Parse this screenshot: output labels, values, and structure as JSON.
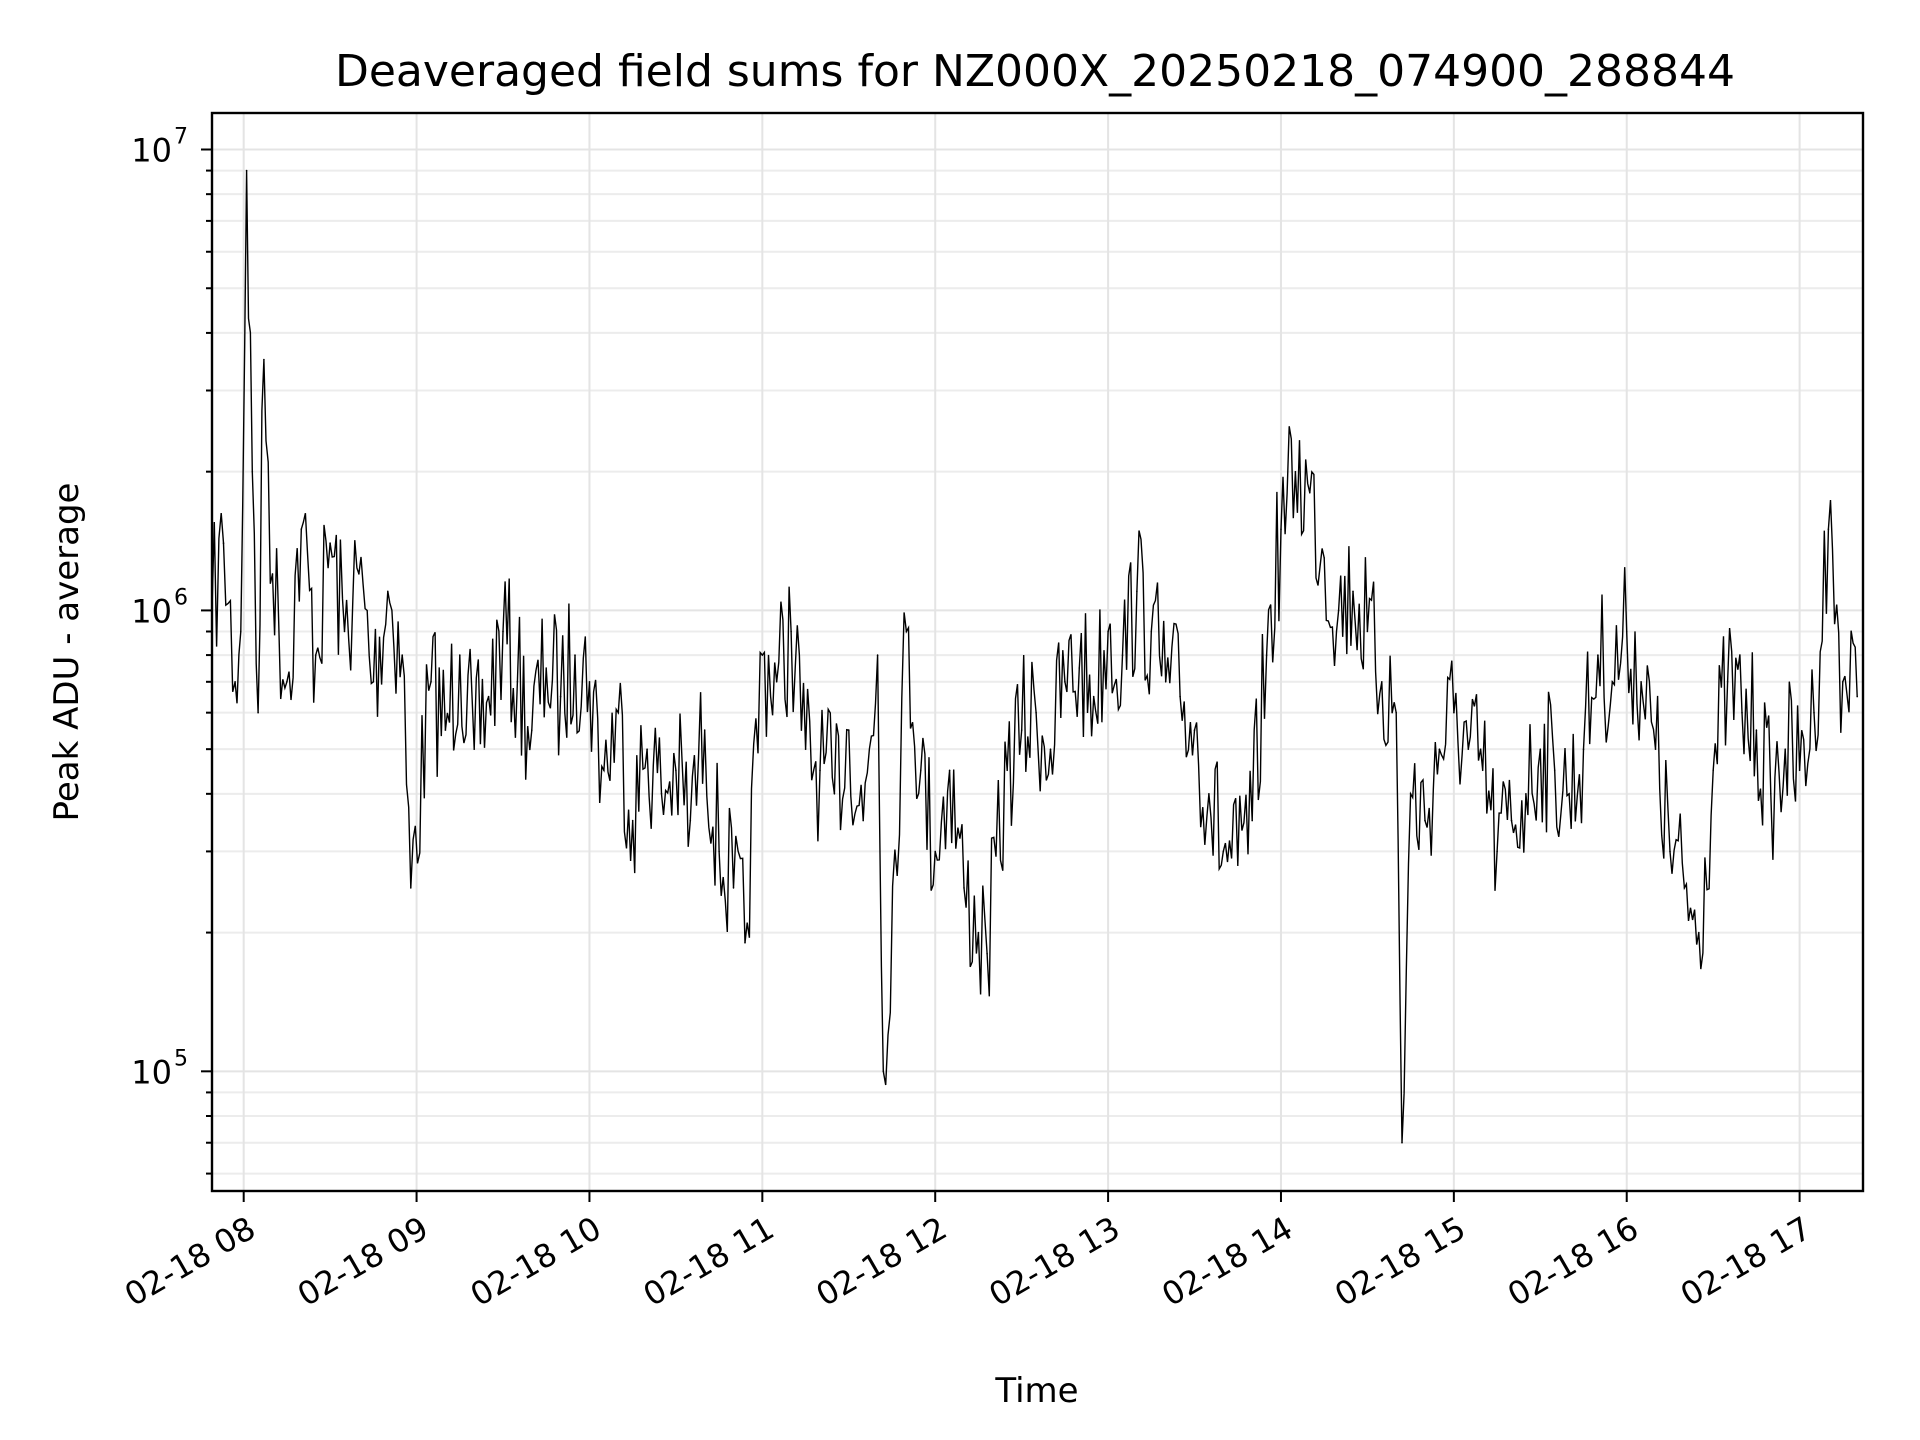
{
  "chart_data": {
    "type": "line",
    "title": "Deaveraged field sums for NZ000X_20250218_074900_288844",
    "xlabel": "Time",
    "ylabel": "Peak ADU - average",
    "y_scale": "log",
    "ylim": [
      55000,
      12000000
    ],
    "xlim": [
      "2025-02-18 07:49",
      "2025-02-18 17:22"
    ],
    "grid": true,
    "legend": "none",
    "line_color": "#000000",
    "x_ticks": [
      {
        "t": "2025-02-18 08:00",
        "label": "02-18 08"
      },
      {
        "t": "2025-02-18 09:00",
        "label": "02-18 09"
      },
      {
        "t": "2025-02-18 10:00",
        "label": "02-18 10"
      },
      {
        "t": "2025-02-18 11:00",
        "label": "02-18 11"
      },
      {
        "t": "2025-02-18 12:00",
        "label": "02-18 12"
      },
      {
        "t": "2025-02-18 13:00",
        "label": "02-18 13"
      },
      {
        "t": "2025-02-18 14:00",
        "label": "02-18 14"
      },
      {
        "t": "2025-02-18 15:00",
        "label": "02-18 15"
      },
      {
        "t": "2025-02-18 16:00",
        "label": "02-18 16"
      },
      {
        "t": "2025-02-18 17:00",
        "label": "02-18 17"
      }
    ],
    "y_ticks": [
      {
        "value": 100000,
        "base": "10",
        "exp": "5"
      },
      {
        "value": 1000000,
        "base": "10",
        "exp": "6"
      },
      {
        "value": 10000000,
        "base": "10",
        "exp": "7"
      }
    ],
    "series": [
      {
        "x": [
          "2025-02-18 07:49",
          "2025-02-18 07:53",
          "2025-02-18 07:57",
          "2025-02-18 07:59",
          "2025-02-18 08:01",
          "2025-02-18 08:03",
          "2025-02-18 08:05",
          "2025-02-18 08:07",
          "2025-02-18 08:10",
          "2025-02-18 08:15",
          "2025-02-18 08:20",
          "2025-02-18 08:25",
          "2025-02-18 08:30",
          "2025-02-18 08:35",
          "2025-02-18 08:40",
          "2025-02-18 08:45",
          "2025-02-18 08:50",
          "2025-02-18 08:55",
          "2025-02-18 08:58",
          "2025-02-18 09:05",
          "2025-02-18 09:10",
          "2025-02-18 09:15",
          "2025-02-18 09:20",
          "2025-02-18 09:25",
          "2025-02-18 09:30",
          "2025-02-18 09:35",
          "2025-02-18 09:40",
          "2025-02-18 09:45",
          "2025-02-18 09:50",
          "2025-02-18 09:55",
          "2025-02-18 10:00",
          "2025-02-18 10:05",
          "2025-02-18 10:10",
          "2025-02-18 10:15",
          "2025-02-18 10:20",
          "2025-02-18 10:25",
          "2025-02-18 10:30",
          "2025-02-18 10:35",
          "2025-02-18 10:40",
          "2025-02-18 10:45",
          "2025-02-18 10:50",
          "2025-02-18 10:54",
          "2025-02-18 11:00",
          "2025-02-18 11:05",
          "2025-02-18 11:10",
          "2025-02-18 11:15",
          "2025-02-18 11:20",
          "2025-02-18 11:25",
          "2025-02-18 11:30",
          "2025-02-18 11:35",
          "2025-02-18 11:40",
          "2025-02-18 11:42",
          "2025-02-18 11:50",
          "2025-02-18 11:55",
          "2025-02-18 12:00",
          "2025-02-18 12:05",
          "2025-02-18 12:10",
          "2025-02-18 12:15",
          "2025-02-18 12:18",
          "2025-02-18 12:25",
          "2025-02-18 12:30",
          "2025-02-18 12:35",
          "2025-02-18 12:40",
          "2025-02-18 12:45",
          "2025-02-18 12:50",
          "2025-02-18 12:55",
          "2025-02-18 13:00",
          "2025-02-18 13:05",
          "2025-02-18 13:10",
          "2025-02-18 13:15",
          "2025-02-18 13:20",
          "2025-02-18 13:25",
          "2025-02-18 13:30",
          "2025-02-18 13:35",
          "2025-02-18 13:40",
          "2025-02-18 13:45",
          "2025-02-18 13:50",
          "2025-02-18 13:55",
          "2025-02-18 14:00",
          "2025-02-18 14:05",
          "2025-02-18 14:10",
          "2025-02-18 14:15",
          "2025-02-18 14:20",
          "2025-02-18 14:25",
          "2025-02-18 14:30",
          "2025-02-18 14:35",
          "2025-02-18 14:40",
          "2025-02-18 14:42",
          "2025-02-18 14:45",
          "2025-02-18 14:50",
          "2025-02-18 14:55",
          "2025-02-18 15:00",
          "2025-02-18 15:05",
          "2025-02-18 15:10",
          "2025-02-18 15:15",
          "2025-02-18 15:20",
          "2025-02-18 15:25",
          "2025-02-18 15:30",
          "2025-02-18 15:35",
          "2025-02-18 15:40",
          "2025-02-18 15:45",
          "2025-02-18 15:50",
          "2025-02-18 15:55",
          "2025-02-18 16:00",
          "2025-02-18 16:05",
          "2025-02-18 16:10",
          "2025-02-18 16:15",
          "2025-02-18 16:20",
          "2025-02-18 16:25",
          "2025-02-18 16:30",
          "2025-02-18 16:35",
          "2025-02-18 16:40",
          "2025-02-18 16:45",
          "2025-02-18 16:50",
          "2025-02-18 16:55",
          "2025-02-18 17:00",
          "2025-02-18 17:05",
          "2025-02-18 17:10",
          "2025-02-18 17:15",
          "2025-02-18 17:20"
        ],
        "y": [
          1000000,
          1400000,
          700000,
          900000,
          9000000,
          2000000,
          600000,
          3500000,
          1200000,
          700000,
          1500000,
          800000,
          1400000,
          900000,
          1200000,
          700000,
          1100000,
          800000,
          250000,
          700000,
          550000,
          800000,
          500000,
          650000,
          900000,
          700000,
          550000,
          750000,
          650000,
          800000,
          700000,
          450000,
          600000,
          350000,
          500000,
          400000,
          450000,
          350000,
          550000,
          300000,
          250000,
          190000,
          800000,
          700000,
          900000,
          500000,
          450000,
          400000,
          550000,
          350000,
          800000,
          100000,
          900000,
          450000,
          300000,
          450000,
          250000,
          200000,
          180000,
          450000,
          550000,
          600000,
          500000,
          700000,
          750000,
          650000,
          900000,
          800000,
          1100000,
          900000,
          700000,
          650000,
          550000,
          400000,
          300000,
          280000,
          350000,
          800000,
          1500000,
          2000000,
          1800000,
          1300000,
          1000000,
          1100000,
          900000,
          700000,
          600000,
          70000,
          400000,
          350000,
          500000,
          600000,
          500000,
          450000,
          300000,
          350000,
          400000,
          500000,
          450000,
          400000,
          500000,
          800000,
          700000,
          900000,
          700000,
          500000,
          300000,
          250000,
          200000,
          450000,
          700000,
          600000,
          550000,
          400000,
          500000,
          450000,
          600000,
          1500000,
          700000,
          650000
        ]
      }
    ]
  }
}
